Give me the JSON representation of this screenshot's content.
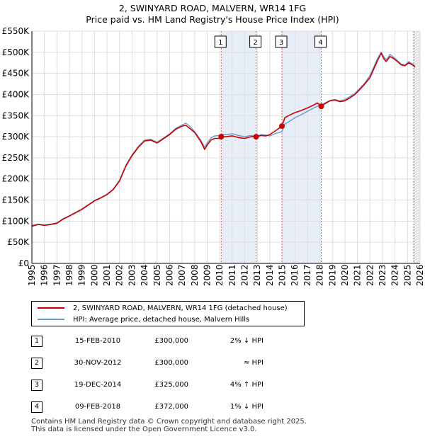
{
  "chart_data": {
    "type": "line",
    "title": "2, SWINYARD ROAD, MALVERN, WR14 1FG",
    "subtitle": "Price paid vs. HM Land Registry's House Price Index (HPI)",
    "xlabel": "",
    "ylabel": "",
    "xlim": [
      1995,
      2026
    ],
    "ylim": [
      0,
      550000
    ],
    "grid": true,
    "x_ticks": [
      "1995",
      "1996",
      "1997",
      "1998",
      "1999",
      "2000",
      "2001",
      "2002",
      "2003",
      "2004",
      "2005",
      "2006",
      "2007",
      "2008",
      "2009",
      "2010",
      "2011",
      "2012",
      "2013",
      "2014",
      "2015",
      "2016",
      "2017",
      "2018",
      "2019",
      "2020",
      "2021",
      "2022",
      "2023",
      "2024",
      "2025",
      "2026"
    ],
    "y_ticks": [
      {
        "value": 0,
        "label": "£0"
      },
      {
        "value": 50000,
        "label": "£50K"
      },
      {
        "value": 100000,
        "label": "£100K"
      },
      {
        "value": 150000,
        "label": "£150K"
      },
      {
        "value": 200000,
        "label": "£200K"
      },
      {
        "value": 250000,
        "label": "£250K"
      },
      {
        "value": 300000,
        "label": "£300K"
      },
      {
        "value": 350000,
        "label": "£350K"
      },
      {
        "value": 400000,
        "label": "£400K"
      },
      {
        "value": 450000,
        "label": "£450K"
      },
      {
        "value": 500000,
        "label": "£500K"
      },
      {
        "value": 550000,
        "label": "£550K"
      }
    ],
    "series": [
      {
        "name": "2, SWINYARD ROAD, MALVERN, WR14 1FG (detached house)",
        "color": "#cc0000",
        "x": [
          1995.0,
          1995.5,
          1996.0,
          1996.5,
          1997.0,
          1997.5,
          1998.0,
          1998.5,
          1999.0,
          1999.5,
          2000.0,
          2000.5,
          2001.0,
          2001.5,
          2002.0,
          2002.5,
          2003.0,
          2003.5,
          2004.0,
          2004.5,
          2005.0,
          2005.5,
          2006.0,
          2006.5,
          2007.0,
          2007.3,
          2007.6,
          2008.0,
          2008.5,
          2008.8,
          2009.0,
          2009.3,
          2009.6,
          2010.0,
          2010.12,
          2010.5,
          2011.0,
          2011.5,
          2012.0,
          2012.5,
          2012.91,
          2013.3,
          2013.7,
          2014.0,
          2014.5,
          2014.97,
          2015.2,
          2015.5,
          2016.0,
          2016.5,
          2017.0,
          2017.5,
          2017.8,
          2018.11,
          2018.4,
          2018.8,
          2019.2,
          2019.6,
          2020.0,
          2020.4,
          2020.8,
          2021.2,
          2021.6,
          2022.0,
          2022.3,
          2022.6,
          2022.9,
          2023.1,
          2023.3,
          2023.6,
          2023.9,
          2024.2,
          2024.5,
          2024.8,
          2025.1,
          2025.4,
          2025.6
        ],
        "values": [
          88000,
          92000,
          90000,
          92000,
          95000,
          105000,
          112000,
          120000,
          128000,
          138000,
          148000,
          155000,
          163000,
          175000,
          195000,
          230000,
          255000,
          275000,
          290000,
          292000,
          285000,
          295000,
          305000,
          318000,
          325000,
          327000,
          320000,
          310000,
          288000,
          270000,
          280000,
          292000,
          296000,
          296000,
          300000,
          300000,
          302000,
          298000,
          296000,
          300000,
          300000,
          303000,
          302000,
          305000,
          315000,
          325000,
          345000,
          350000,
          357000,
          362000,
          368000,
          375000,
          380000,
          372000,
          378000,
          385000,
          387000,
          383000,
          385000,
          392000,
          400000,
          412000,
          425000,
          440000,
          460000,
          480000,
          498000,
          485000,
          478000,
          490000,
          485000,
          478000,
          470000,
          468000,
          475000,
          470000,
          465000
        ]
      },
      {
        "name": "HPI: Average price, detached house, Malvern Hills",
        "color": "#6699cc",
        "x": [
          1995.0,
          1995.5,
          1996.0,
          1996.5,
          1997.0,
          1997.5,
          1998.0,
          1998.5,
          1999.0,
          1999.5,
          2000.0,
          2000.5,
          2001.0,
          2001.5,
          2002.0,
          2002.5,
          2003.0,
          2003.5,
          2004.0,
          2004.5,
          2005.0,
          2005.5,
          2006.0,
          2006.5,
          2007.0,
          2007.3,
          2007.6,
          2008.0,
          2008.5,
          2008.8,
          2009.0,
          2009.3,
          2009.6,
          2010.0,
          2010.12,
          2010.5,
          2011.0,
          2011.5,
          2012.0,
          2012.5,
          2012.91,
          2013.3,
          2013.7,
          2014.0,
          2014.5,
          2014.97,
          2015.2,
          2015.5,
          2016.0,
          2016.5,
          2017.0,
          2017.5,
          2017.8,
          2018.11,
          2018.4,
          2018.8,
          2019.2,
          2019.6,
          2020.0,
          2020.4,
          2020.8,
          2021.2,
          2021.6,
          2022.0,
          2022.3,
          2022.6,
          2022.9,
          2023.1,
          2023.3,
          2023.6,
          2023.9,
          2024.2,
          2024.5,
          2024.8,
          2025.1,
          2025.4,
          2025.6
        ],
        "values": [
          90000,
          93000,
          91000,
          93000,
          96000,
          106000,
          113000,
          121000,
          129000,
          139000,
          149000,
          156000,
          164000,
          176000,
          197000,
          232000,
          257000,
          277000,
          292000,
          294000,
          287000,
          297000,
          307000,
          320000,
          328000,
          332000,
          325000,
          312000,
          292000,
          275000,
          285000,
          297000,
          302000,
          303000,
          306000,
          305000,
          307000,
          303000,
          300000,
          303000,
          301000,
          305000,
          304000,
          302000,
          308000,
          312000,
          330000,
          335000,
          345000,
          352000,
          360000,
          368000,
          372000,
          376000,
          380000,
          386000,
          388000,
          385000,
          388000,
          395000,
          403000,
          415000,
          428000,
          445000,
          465000,
          485000,
          500000,
          490000,
          482000,
          495000,
          488000,
          480000,
          472000,
          470000,
          478000,
          472000,
          468000
        ]
      }
    ],
    "markers": [
      {
        "num": 1,
        "x": 2010.12,
        "y": 300000
      },
      {
        "num": 2,
        "x": 2012.91,
        "y": 300000
      },
      {
        "num": 3,
        "x": 2014.97,
        "y": 325000
      },
      {
        "num": 4,
        "x": 2018.11,
        "y": 372000
      }
    ],
    "shaded_ranges": [
      [
        2010.12,
        2012.91
      ],
      [
        2014.97,
        2018.11
      ]
    ],
    "forecast_start": 2025.5,
    "legend_position": "bottom"
  },
  "legend": {
    "property_label": "2, SWINYARD ROAD, MALVERN, WR14 1FG (detached house)",
    "hpi_label": "HPI: Average price, detached house, Malvern Hills"
  },
  "transactions": [
    {
      "num": "1",
      "date": "15-FEB-2010",
      "price": "£300,000",
      "hpi": "2% ↓ HPI"
    },
    {
      "num": "2",
      "date": "30-NOV-2012",
      "price": "£300,000",
      "hpi": "≈ HPI"
    },
    {
      "num": "3",
      "date": "19-DEC-2014",
      "price": "£325,000",
      "hpi": "4% ↑ HPI"
    },
    {
      "num": "4",
      "date": "09-FEB-2018",
      "price": "£372,000",
      "hpi": "1% ↓ HPI"
    }
  ],
  "footer": {
    "line1": "Contains HM Land Registry data © Crown copyright and database right 2025.",
    "line2": "This data is licensed under the Open Government Licence v3.0."
  },
  "colors": {
    "property_line": "#cc0000",
    "hpi_line": "#6699cc",
    "shade": "#e8eef8",
    "marker_line": "#dd6666",
    "grid": "#dddddd"
  }
}
